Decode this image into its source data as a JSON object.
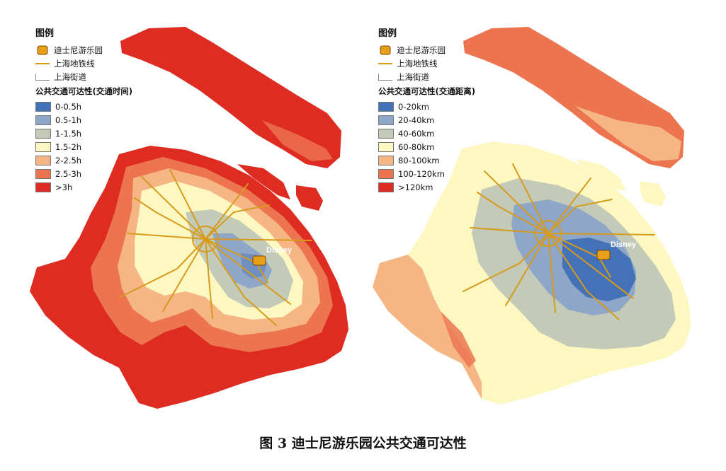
{
  "panels": [
    {
      "legend_title": "图例",
      "symbols": [
        "迪士尼游乐园",
        "上海地铁线",
        "上海街道"
      ],
      "class_heading": "公共交通可达性(交通时间)",
      "classes": [
        {
          "label": "0-0.5h",
          "color": "#4472b8"
        },
        {
          "label": "0.5-1h",
          "color": "#8ea6c8"
        },
        {
          "label": "1-1.5h",
          "color": "#c3cbb8"
        },
        {
          "label": "1.5-2h",
          "color": "#fdf8c1"
        },
        {
          "label": "2-2.5h",
          "color": "#f6b585"
        },
        {
          "label": "2.5-3h",
          "color": "#ec7550"
        },
        {
          "label": ">3h",
          "color": "#de2c22"
        }
      ],
      "poi_label": "Disney"
    },
    {
      "legend_title": "图例",
      "symbols": [
        "迪士尼游乐园",
        "上海地铁线",
        "上海街道"
      ],
      "class_heading": "公共交通可达性(交通距离)",
      "classes": [
        {
          "label": "0-20km",
          "color": "#4472b8"
        },
        {
          "label": "20-40km",
          "color": "#8ea6c8"
        },
        {
          "label": "40-60km",
          "color": "#c3cbb8"
        },
        {
          "label": "60-80km",
          "color": "#fdf8c1"
        },
        {
          "label": "80-100km",
          "color": "#f6b585"
        },
        {
          "label": "100-120km",
          "color": "#ec7550"
        },
        {
          "label": ">120km",
          "color": "#de2c22"
        }
      ],
      "poi_label": "Disney"
    }
  ],
  "caption": "图 3  迪士尼游乐园公共交通可达性",
  "colors": {
    "metro": "#d79a1b",
    "poi": "#e8a019"
  }
}
